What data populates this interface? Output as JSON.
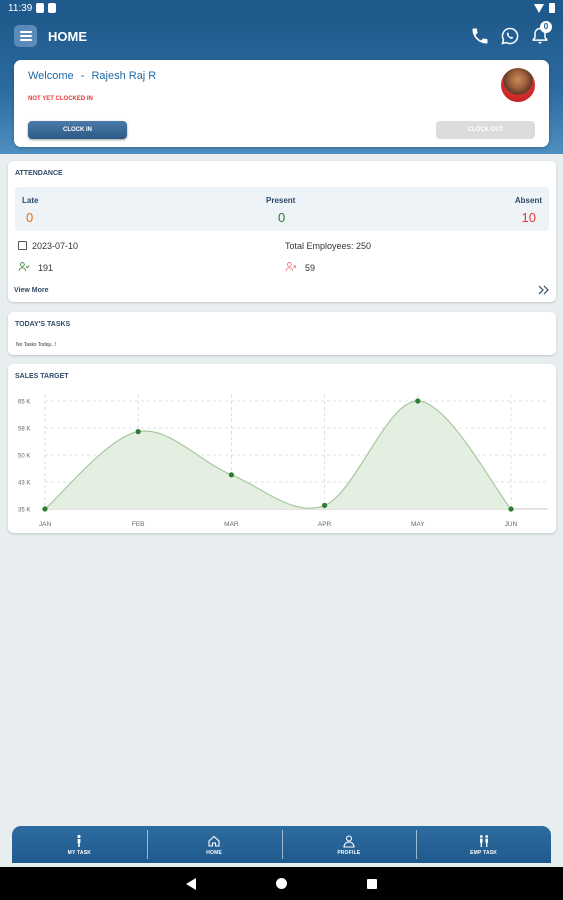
{
  "status_bar": {
    "time": "11:39"
  },
  "header": {
    "title": "HOME",
    "notification_count": "0"
  },
  "welcome": {
    "greeting": "Welcome",
    "separator": "-",
    "user_name": "Rajesh Raj R",
    "clock_status": "NOT YET CLOCKED IN",
    "clock_in_label": "CLOCK IN",
    "clock_out_label": "CLOCK OUT"
  },
  "attendance": {
    "title": "ATTENDANCE",
    "late_label": "Late",
    "late_value": "0",
    "present_label": "Present",
    "present_value": "0",
    "absent_label": "Absent",
    "absent_value": "10",
    "date": "2023-07-10",
    "total_employees": "Total Employees: 250",
    "present_count": "191",
    "absent_count": "59",
    "view_more": "View More"
  },
  "tasks": {
    "title": "TODAY'S TASKS",
    "empty_text": "No Tasks Today...!"
  },
  "sales": {
    "title": "SALES TARGET"
  },
  "chart_data": {
    "type": "area",
    "title": "",
    "categories": [
      "JAN",
      "FEB",
      "MAR",
      "APR",
      "MAY",
      "JUN"
    ],
    "values": [
      35,
      56.5,
      44.5,
      36,
      65,
      35
    ],
    "y_ticks": [
      "35 K",
      "43 K",
      "50 K",
      "58 K",
      "65 K"
    ],
    "ylim": [
      35,
      65
    ],
    "grid": true,
    "series_color": "#2e7d32",
    "fill_color": "#e4efe2"
  },
  "bottom_nav": {
    "items": [
      {
        "label": "MY TASK",
        "icon": "person-icon"
      },
      {
        "label": "HOME",
        "icon": "home-icon"
      },
      {
        "label": "PROFILE",
        "icon": "profile-icon"
      },
      {
        "label": "EMP TASK",
        "icon": "people-icon"
      }
    ]
  },
  "colors": {
    "primary": "#1f5a8c",
    "late": "#ef6c00",
    "present": "#2e7d32",
    "absent": "#e53935"
  }
}
